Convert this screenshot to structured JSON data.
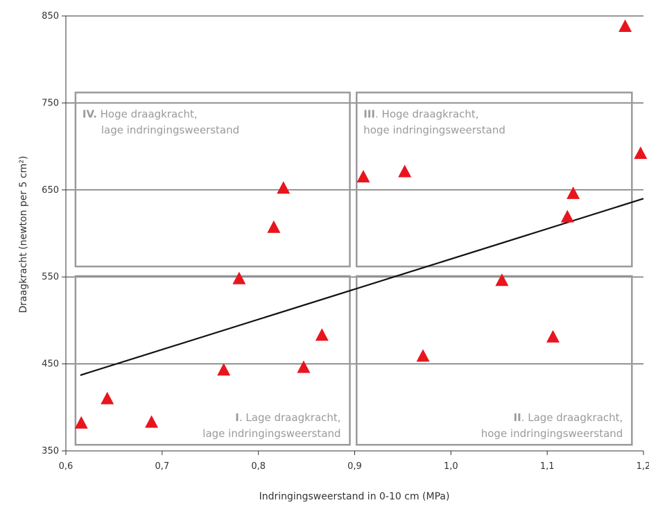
{
  "chart_data": {
    "type": "scatter",
    "xlabel": "Indringingsweerstand in 0-10 cm (MPa)",
    "ylabel": "Draagkracht (newton per 5 cm²)",
    "xlim": [
      0.6,
      1.2
    ],
    "ylim": [
      350,
      850
    ],
    "x_ticks": [
      "0,6",
      "0,7",
      "0,8",
      "0,9",
      "1,0",
      "1,1",
      "1,2"
    ],
    "y_ticks": [
      "350",
      "450",
      "550",
      "650",
      "750",
      "850"
    ],
    "grid": "horizontal",
    "points": [
      {
        "x": 0.616,
        "y": 382
      },
      {
        "x": 0.643,
        "y": 410
      },
      {
        "x": 0.689,
        "y": 383
      },
      {
        "x": 0.764,
        "y": 443
      },
      {
        "x": 0.78,
        "y": 548
      },
      {
        "x": 0.816,
        "y": 607
      },
      {
        "x": 0.826,
        "y": 652
      },
      {
        "x": 0.847,
        "y": 446
      },
      {
        "x": 0.866,
        "y": 483
      },
      {
        "x": 0.909,
        "y": 665
      },
      {
        "x": 0.952,
        "y": 671
      },
      {
        "x": 0.971,
        "y": 459
      },
      {
        "x": 1.053,
        "y": 546
      },
      {
        "x": 1.106,
        "y": 481
      },
      {
        "x": 1.121,
        "y": 619
      },
      {
        "x": 1.127,
        "y": 646
      },
      {
        "x": 1.181,
        "y": 838
      },
      {
        "x": 1.197,
        "y": 692
      }
    ],
    "trendline": {
      "x": [
        0.615,
        1.2
      ],
      "y": [
        437,
        640
      ]
    },
    "quadrants": [
      {
        "x_range": [
          0.61,
          0.895
        ],
        "y_range": [
          562,
          762
        ],
        "num": "IV.",
        "line1": "Hoge draagkracht,",
        "line2": "lage indringingsweerstand"
      },
      {
        "x_range": [
          0.902,
          1.188
        ],
        "y_range": [
          562,
          762
        ],
        "num": "III",
        "line1": ". Hoge draagkracht,",
        "line2": "hoge indringingsweerstand"
      },
      {
        "x_range": [
          0.61,
          0.895
        ],
        "y_range": [
          357,
          551
        ],
        "num": "I",
        "line1": ". Lage draagkracht,",
        "line2": "lage indringingsweerstand"
      },
      {
        "x_range": [
          0.902,
          1.188
        ],
        "y_range": [
          357,
          551
        ],
        "num": "II",
        "line1": ". Lage draagkracht,",
        "line2": "hoge indringingsweerstand"
      }
    ],
    "colors": {
      "marker": "#e8151e",
      "trendline": "#111111",
      "quadrant_box": "#9a9a9a",
      "grid": "#333333"
    }
  }
}
